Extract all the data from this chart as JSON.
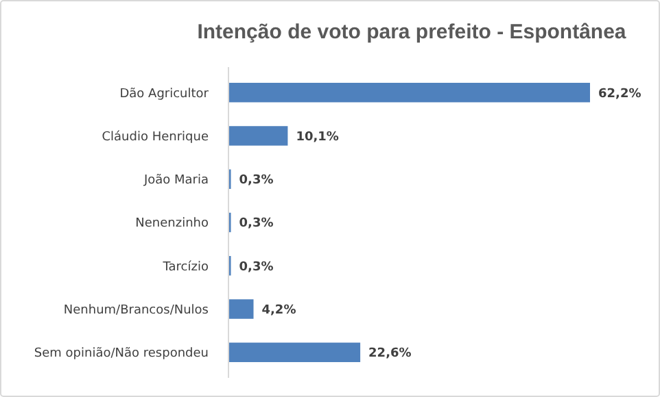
{
  "chart_data": {
    "type": "bar",
    "orientation": "horizontal",
    "title": "Intenção de voto para prefeito - Espontânea",
    "categories": [
      "Dão Agricultor",
      "Cláudio Henrique",
      "João Maria",
      "Nenenzinho",
      "Tarcízio",
      "Nenhum/Brancos/Nulos",
      "Sem opinião/Não respondeu"
    ],
    "values": [
      62.2,
      10.1,
      0.3,
      0.3,
      0.3,
      4.2,
      22.6
    ],
    "value_labels": [
      "62,2%",
      "10,1%",
      "0,3%",
      "0,3%",
      "0,3%",
      "4,2%",
      "22,6%"
    ],
    "color": "#4f81bd"
  }
}
